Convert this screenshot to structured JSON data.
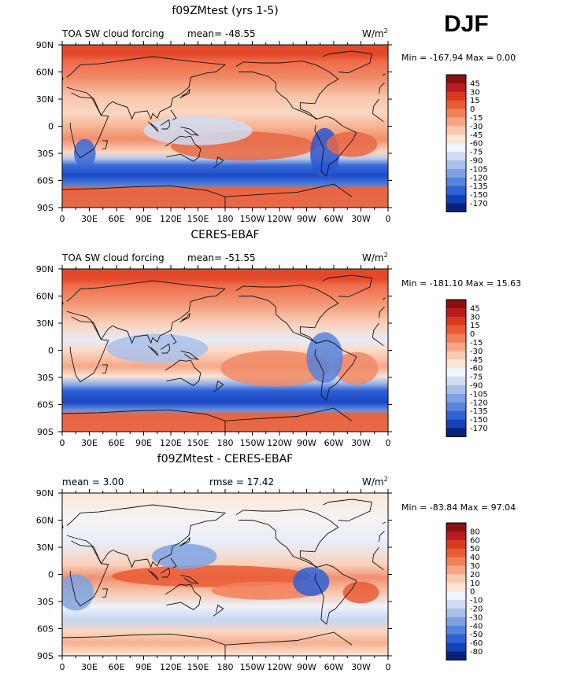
{
  "season": "DJF",
  "lon_ticks": [
    "0",
    "30E",
    "60E",
    "90E",
    "120E",
    "150E",
    "180",
    "150W",
    "120W",
    "90W",
    "60W",
    "30W",
    "0"
  ],
  "lat_ticks": [
    "90N",
    "60N",
    "30N",
    "0",
    "30S",
    "60S",
    "90S"
  ],
  "panels": [
    {
      "title": "f09ZMtest (yrs 1-5)",
      "left_label": "TOA SW cloud forcing",
      "stat_label": "mean=",
      "stat_value": "-48.55",
      "stat2_label": "",
      "stat2_value": "",
      "units": "W/m",
      "units_exp": "2",
      "min_label": "Min =",
      "min_value": "-167.94",
      "max_label": "Max =",
      "max_value": "0.00",
      "colorbar_levels": [
        "45",
        "30",
        "15",
        "0",
        "-15",
        "-30",
        "-45",
        "-60",
        "-75",
        "-90",
        "-105",
        "-120",
        "-135",
        "-150",
        "-170"
      ],
      "colorbar_colors": [
        "#8a0f0f",
        "#b81c1c",
        "#d93a1f",
        "#ea5a35",
        "#f2805a",
        "#f7a585",
        "#fbc9ae",
        "#fde6d6",
        "#f1f4fb",
        "#cfdcf3",
        "#a9c1ea",
        "#7fa3e2",
        "#5683dc",
        "#2e62d6",
        "#1441b8",
        "#09227a"
      ]
    },
    {
      "title": "CERES-EBAF",
      "left_label": "TOA SW cloud forcing",
      "stat_label": "mean=",
      "stat_value": "-51.55",
      "stat2_label": "",
      "stat2_value": "",
      "units": "W/m",
      "units_exp": "2",
      "min_label": "Min =",
      "min_value": "-181.10",
      "max_label": "Max =",
      "max_value": "15.63",
      "colorbar_levels": [
        "45",
        "30",
        "15",
        "0",
        "-15",
        "-30",
        "-45",
        "-60",
        "-75",
        "-90",
        "-105",
        "-120",
        "-135",
        "-150",
        "-170"
      ],
      "colorbar_colors": [
        "#8a0f0f",
        "#b81c1c",
        "#d93a1f",
        "#ea5a35",
        "#f2805a",
        "#f7a585",
        "#fbc9ae",
        "#fde6d6",
        "#f1f4fb",
        "#cfdcf3",
        "#a9c1ea",
        "#7fa3e2",
        "#5683dc",
        "#2e62d6",
        "#1441b8",
        "#09227a"
      ]
    },
    {
      "title": "f09ZMtest - CERES-EBAF",
      "left_label": "",
      "stat_label": "mean =",
      "stat_value": "3.00",
      "stat2_label": "rmse =",
      "stat2_value": "17.42",
      "units": "W/m",
      "units_exp": "2",
      "min_label": "Min =",
      "min_value": "-83.84",
      "max_label": "Max =",
      "max_value": "97.04",
      "colorbar_levels": [
        "80",
        "60",
        "50",
        "40",
        "30",
        "20",
        "10",
        "0",
        "-10",
        "-20",
        "-30",
        "-40",
        "-50",
        "-60",
        "-80"
      ],
      "colorbar_colors": [
        "#8a0f0f",
        "#b81c1c",
        "#d93a1f",
        "#ea5a35",
        "#f2805a",
        "#f7a585",
        "#fbc9ae",
        "#fde6d6",
        "#f1f4fb",
        "#cfdcf3",
        "#a9c1ea",
        "#7fa3e2",
        "#5683dc",
        "#2e62d6",
        "#1441b8",
        "#09227a"
      ]
    }
  ],
  "chart_data": [
    {
      "type": "heatmap",
      "title": "f09ZMtest (yrs 1-5)",
      "variable": "TOA SW cloud forcing",
      "units": "W/m2",
      "mean": -48.55,
      "min": -167.94,
      "max": 0.0,
      "levels": [
        45,
        30,
        15,
        0,
        -15,
        -30,
        -45,
        -60,
        -75,
        -90,
        -105,
        -120,
        -135,
        -150,
        -170
      ],
      "x_range": [
        "0",
        "0"
      ],
      "y_range": [
        "90S",
        "90N"
      ]
    },
    {
      "type": "heatmap",
      "title": "CERES-EBAF",
      "variable": "TOA SW cloud forcing",
      "units": "W/m2",
      "mean": -51.55,
      "min": -181.1,
      "max": 15.63,
      "levels": [
        45,
        30,
        15,
        0,
        -15,
        -30,
        -45,
        -60,
        -75,
        -90,
        -105,
        -120,
        -135,
        -150,
        -170
      ],
      "x_range": [
        "0",
        "0"
      ],
      "y_range": [
        "90S",
        "90N"
      ]
    },
    {
      "type": "heatmap",
      "title": "f09ZMtest - CERES-EBAF",
      "units": "W/m2",
      "mean": 3.0,
      "rmse": 17.42,
      "min": -83.84,
      "max": 97.04,
      "levels": [
        80,
        60,
        50,
        40,
        30,
        20,
        10,
        0,
        -10,
        -20,
        -30,
        -40,
        -50,
        -60,
        -80
      ],
      "x_range": [
        "0",
        "0"
      ],
      "y_range": [
        "90S",
        "90N"
      ]
    }
  ]
}
